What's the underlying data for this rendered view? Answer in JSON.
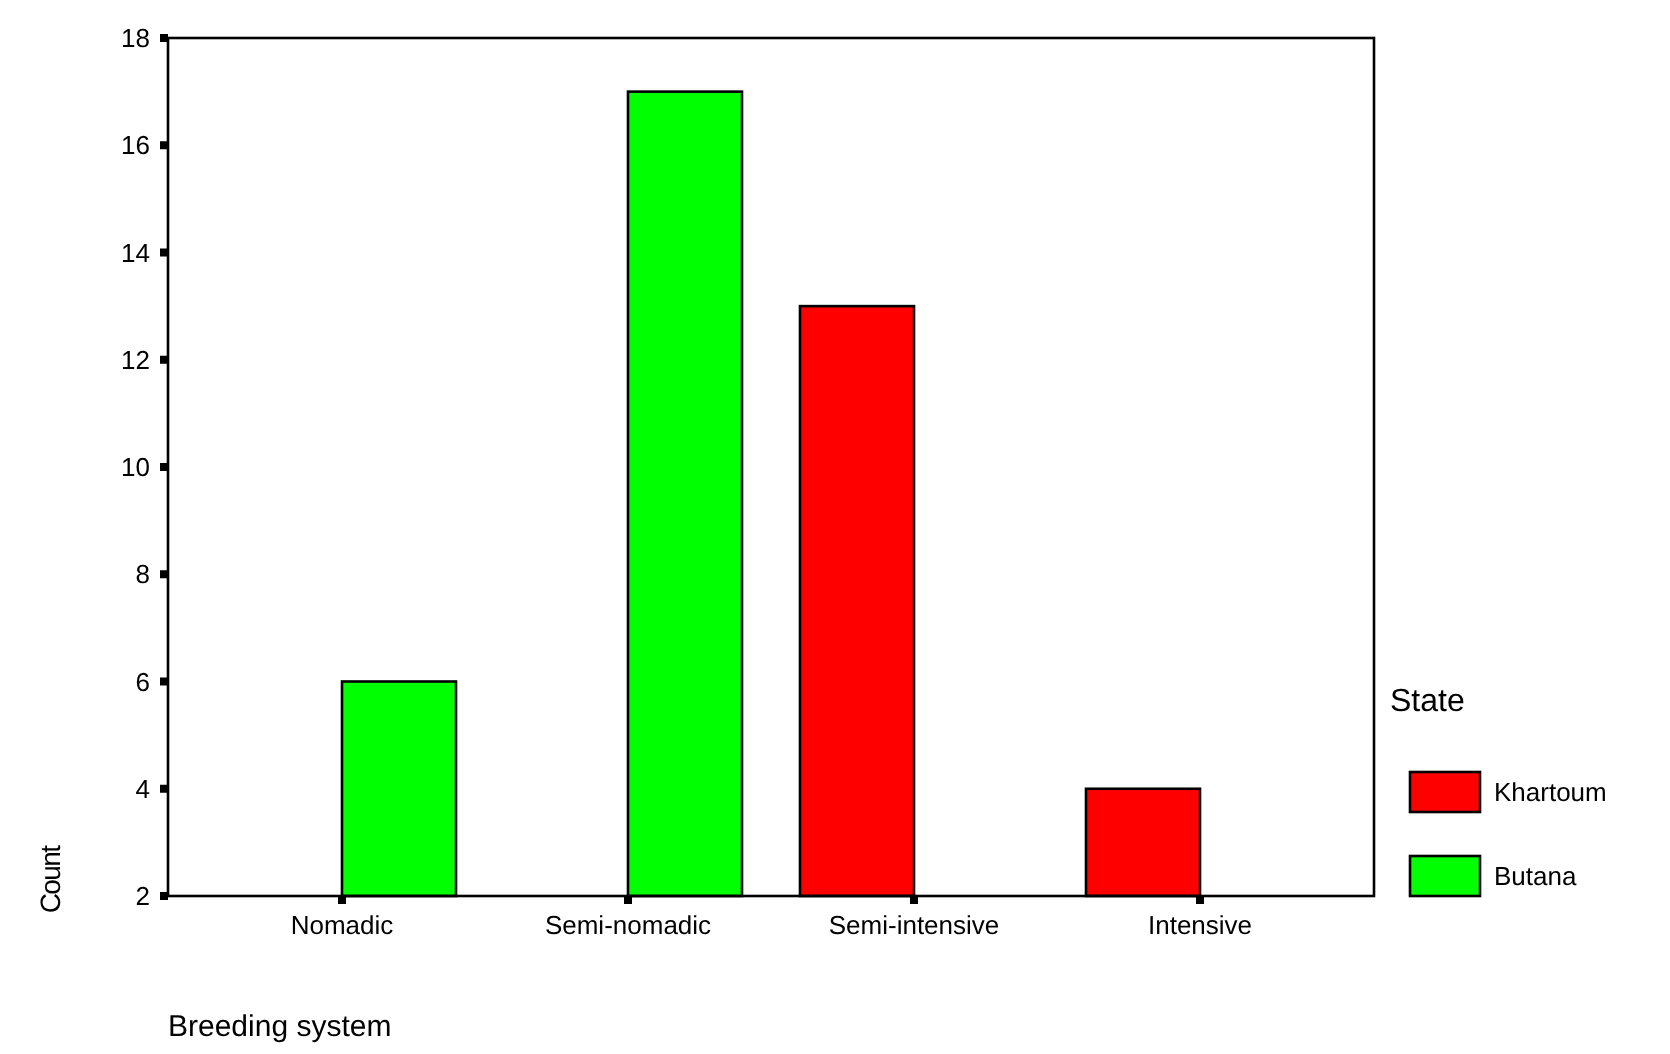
{
  "chart_data": {
    "type": "bar",
    "xlabel": "Breeding system",
    "ylabel": "Count",
    "legend_title": "State",
    "categories": [
      "Nomadic",
      "Semi-nomadic",
      "Semi-intensive",
      "Intensive"
    ],
    "series": [
      {
        "name": "Khartoum",
        "color": "#ff0000",
        "values": [
          null,
          null,
          13,
          4
        ]
      },
      {
        "name": "Butana",
        "color": "#00ff00",
        "values": [
          6,
          17,
          null,
          null
        ]
      }
    ],
    "ylim": [
      2,
      18
    ],
    "yticks": [
      2,
      4,
      6,
      8,
      10,
      12,
      14,
      16,
      18
    ],
    "grid": false,
    "legend": "right"
  }
}
